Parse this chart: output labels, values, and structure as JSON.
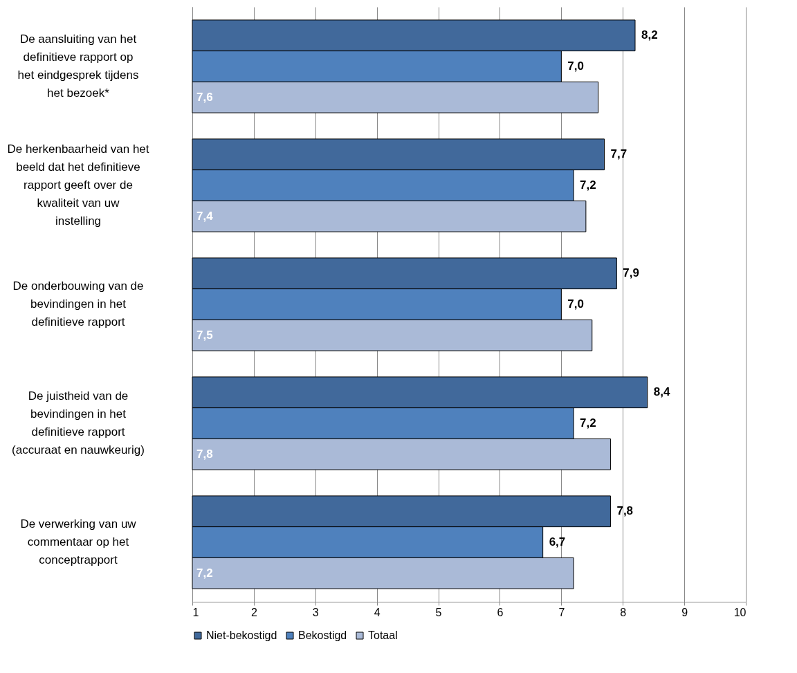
{
  "chart_data": {
    "type": "bar",
    "orientation": "horizontal",
    "categories": [
      "De aansluiting van het definitieve rapport op het eindgesprek tijdens het bezoek*",
      "De herkenbaarheid van het beeld dat het definitieve rapport geeft over de kwaliteit van uw instelling",
      "De onderbouwing van de bevindingen in het definitieve rapport",
      "De juistheid van de bevindingen in het definitieve rapport (accuraat en nauwkeurig)",
      "De verwerking van uw commentaar op het conceptrapport"
    ],
    "series": [
      {
        "name": "Niet-bekostigd",
        "color": "#41699b",
        "values": [
          8.2,
          7.7,
          7.9,
          8.4,
          7.8
        ],
        "value_labels": [
          "8,2",
          "7,7",
          "7,9",
          "8,4",
          "7,8"
        ]
      },
      {
        "name": "Bekostigd",
        "color": "#4f81bd",
        "values": [
          7.0,
          7.2,
          7.0,
          7.2,
          6.7
        ],
        "value_labels": [
          "7,0",
          "7,2",
          "7,0",
          "7,2",
          "6,7"
        ]
      },
      {
        "name": "Totaal",
        "color": "#aabad7",
        "values": [
          7.6,
          7.4,
          7.5,
          7.8,
          7.2
        ],
        "value_labels": [
          "7,6",
          "7,4",
          "7,5",
          "7,8",
          "7,2"
        ]
      }
    ],
    "xlim": [
      1,
      10
    ],
    "xticks": [
      {
        "value": 1,
        "label": "1"
      },
      {
        "value": 2,
        "label": "2"
      },
      {
        "value": 3,
        "label": "3"
      },
      {
        "value": 4,
        "label": "4"
      },
      {
        "value": 5,
        "label": "5"
      },
      {
        "value": 6,
        "label": "6"
      },
      {
        "value": 7,
        "label": "7"
      },
      {
        "value": 8,
        "label": "8"
      },
      {
        "value": 9,
        "label": "9"
      },
      {
        "value": 10,
        "label": "10"
      }
    ],
    "grid": "x",
    "legend": "bottom"
  }
}
